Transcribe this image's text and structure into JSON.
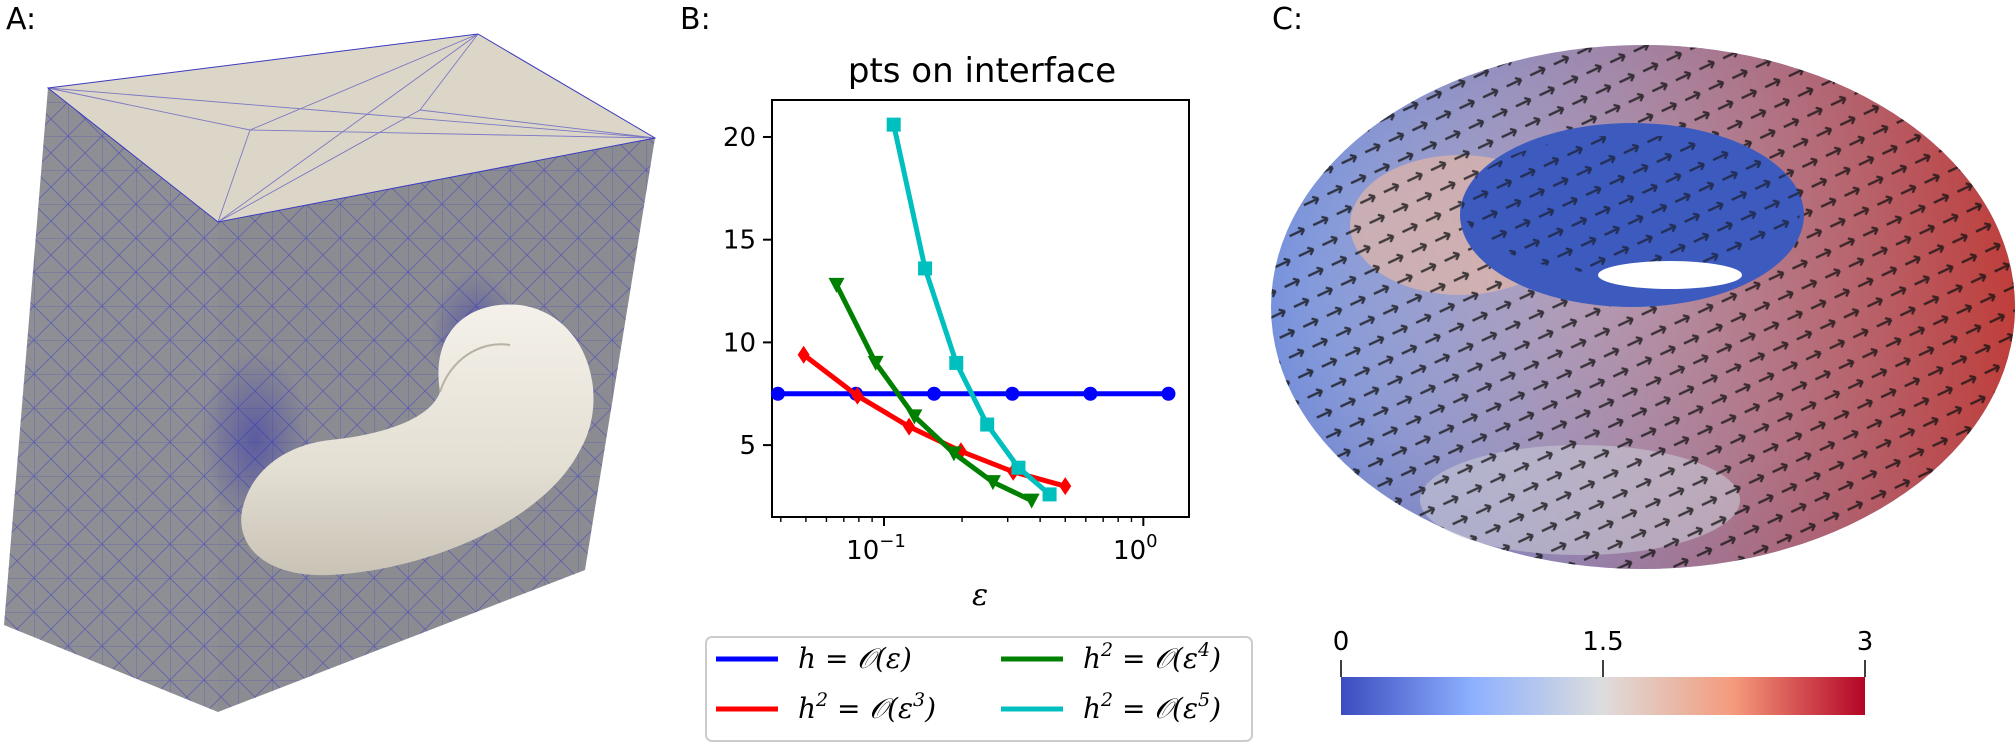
{
  "panels": {
    "a_label": "A:",
    "b_label": "B:",
    "c_label": "C:"
  },
  "chart_data": [
    {
      "type": "line",
      "panel": "B",
      "title": "pts on interface",
      "xlabel": "ε",
      "ylabel": "",
      "xscale": "log",
      "xlim": [
        0.037,
        1.5
      ],
      "ylim": [
        1.5,
        21.8
      ],
      "yticks": [
        5,
        10,
        15,
        20
      ],
      "xticks": [
        0.1,
        1.0
      ],
      "xtick_labels": [
        "10",
        "10"
      ],
      "xtick_exponents": [
        "−1",
        "0"
      ],
      "grid": false,
      "legend_placement": "below",
      "series": [
        {
          "name": "h = 𝒪(ε)",
          "color": "#0000ff",
          "marker": "circle",
          "x": [
            0.039,
            0.078,
            0.156,
            0.3125,
            0.625,
            1.25
          ],
          "y": [
            7.5,
            7.5,
            7.5,
            7.5,
            7.5,
            7.5
          ]
        },
        {
          "name": "h² = 𝒪(ε³)",
          "color": "#ff0000",
          "marker": "diamond",
          "x": [
            0.049,
            0.079,
            0.125,
            0.198,
            0.315,
            0.5
          ],
          "y": [
            9.4,
            7.4,
            5.9,
            4.7,
            3.7,
            3.0
          ]
        },
        {
          "name": "h² = 𝒪(ε⁴)",
          "color": "#008000",
          "marker": "triangle-down",
          "x": [
            0.0656,
            0.0929,
            0.131,
            0.186,
            0.263,
            0.371
          ],
          "y": [
            12.8,
            9.0,
            6.4,
            4.6,
            3.2,
            2.3
          ]
        },
        {
          "name": "h² = 𝒪(ε⁵)",
          "color": "#00bfbf",
          "marker": "square",
          "x": [
            0.109,
            0.144,
            0.19,
            0.25,
            0.33,
            0.435
          ],
          "y": [
            20.6,
            13.6,
            9.0,
            6.0,
            3.9,
            2.6
          ]
        }
      ],
      "legend": {
        "items": [
          {
            "lhs": "h",
            "sup": "",
            "eq": " = 𝒪(ε",
            "exp": "",
            "close": ")"
          },
          {
            "lhs": "h",
            "sup": "2",
            "eq": " = 𝒪(ε",
            "exp": "4",
            "close": ")"
          },
          {
            "lhs": "h",
            "sup": "2",
            "eq": " = 𝒪(ε",
            "exp": "3",
            "close": ")"
          },
          {
            "lhs": "h",
            "sup": "2",
            "eq": " = 𝒪(ε",
            "exp": "5",
            "close": ")"
          }
        ]
      }
    },
    {
      "type": "heatmap",
      "panel": "C",
      "colorbar": {
        "min": 0,
        "max": 3,
        "ticks": [
          0,
          1.5,
          3
        ],
        "tick_labels": [
          "0",
          "1.5",
          "3"
        ],
        "colormap": [
          "#3b4cc0",
          "#8db0fe",
          "#dddddd",
          "#f49a7b",
          "#b40426"
        ]
      }
    }
  ],
  "colors": {
    "mesh_face": "#8a8a92",
    "mesh_top": "#dcd6c8",
    "mesh_line": "#2b2bb8",
    "torus_beige": "#e8e4da"
  }
}
